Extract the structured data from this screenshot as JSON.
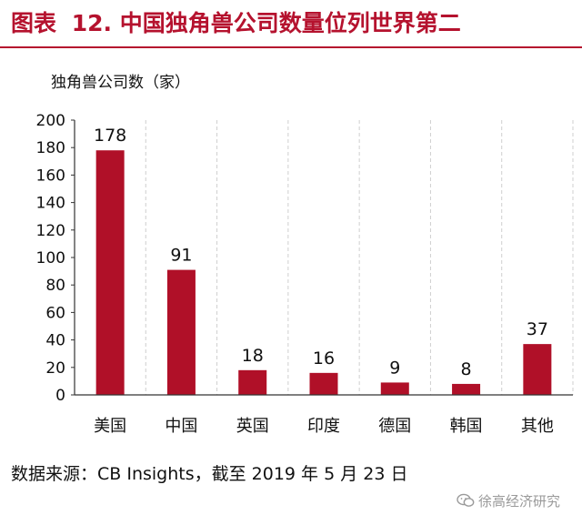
{
  "figure": {
    "label": "图表",
    "number": "12.",
    "title": "中国独角兽公司数量位列世界第二"
  },
  "source": "数据来源：CB Insights，截至 2019 年 5 月 23 日",
  "watermark": {
    "text": "徐高经济研究",
    "icon": "wechat-icon"
  },
  "colors": {
    "accent": "#b5122e",
    "bar": "#b01028"
  },
  "chart_data": {
    "type": "bar",
    "ylabel": "独角兽公司数（家）",
    "xlabel": "",
    "categories": [
      "美国",
      "中国",
      "英国",
      "印度",
      "德国",
      "韩国",
      "其他"
    ],
    "values": [
      178,
      91,
      18,
      16,
      9,
      8,
      37
    ],
    "ylim": [
      0,
      200
    ],
    "yticks": [
      0,
      20,
      40,
      60,
      80,
      100,
      120,
      140,
      160,
      180,
      200
    ],
    "grid": "vertical-dashed",
    "legend": "none",
    "data_labels": true
  }
}
